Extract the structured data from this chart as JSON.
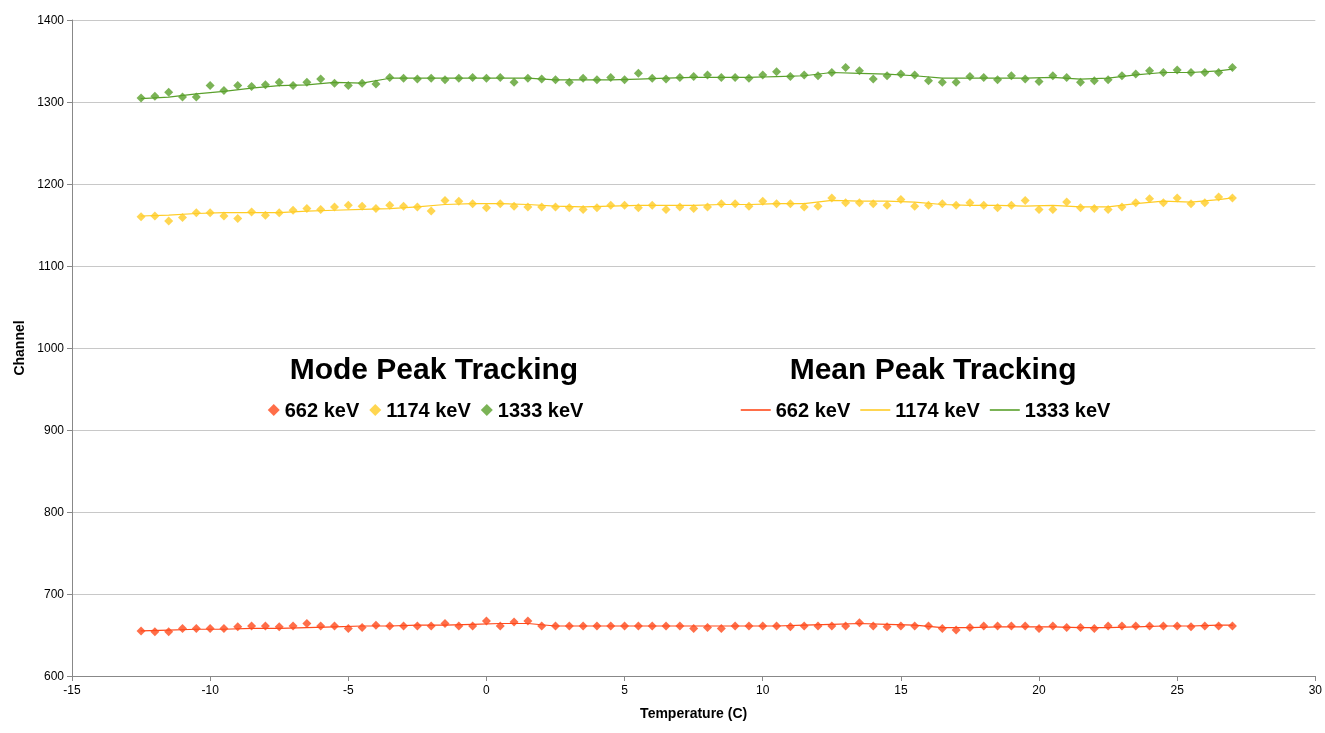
{
  "chart_data": {
    "type": "scatter",
    "xlabel": "Temperature (C)",
    "ylabel": "Channel",
    "annotations": [
      "Mode Peak Tracking",
      "Mean Peak Tracking"
    ],
    "xlim": [
      -15,
      30
    ],
    "xticks": [
      -15,
      -10,
      -5,
      0,
      5,
      10,
      15,
      20,
      25,
      30
    ],
    "ylim": [
      600,
      1400
    ],
    "yticks": [
      600,
      700,
      800,
      900,
      1000,
      1100,
      1200,
      1300,
      1400
    ],
    "grid": "y",
    "legend": "center",
    "marker": "diamond",
    "x": [
      -12.5,
      -12,
      -11.5,
      -11,
      -10.5,
      -10,
      -9.5,
      -9,
      -8.5,
      -8,
      -7.5,
      -7,
      -6.5,
      -6,
      -5.5,
      -5,
      -4.5,
      -4,
      -3.5,
      -3,
      -2.5,
      -2,
      -1.5,
      -1,
      -0.5,
      0,
      0.5,
      1,
      1.5,
      2,
      2.5,
      3,
      3.5,
      4,
      4.5,
      5,
      5.5,
      6,
      6.5,
      7,
      7.5,
      8,
      8.5,
      9,
      9.5,
      10,
      10.5,
      11,
      11.5,
      12,
      12.5,
      13,
      13.5,
      14,
      14.5,
      15,
      15.5,
      16,
      16.5,
      17,
      17.5,
      18,
      18.5,
      19,
      19.5,
      20,
      20.5,
      21,
      21.5,
      22,
      22.5,
      23,
      23.5,
      24,
      24.5,
      25,
      25.5,
      26,
      26.5,
      27
    ],
    "series": [
      {
        "name": "662 keV",
        "color": "#ff4a1c",
        "values": [
          655,
          654,
          654,
          658,
          658,
          658,
          658,
          660,
          661,
          661,
          660,
          661,
          664,
          661,
          661,
          658,
          659,
          662,
          661,
          661,
          661,
          661,
          664,
          661,
          661,
          667,
          661,
          666,
          667,
          661,
          661,
          661,
          661,
          661,
          661,
          661,
          661,
          661,
          661,
          661,
          658,
          659,
          658,
          661,
          661,
          661,
          661,
          660,
          661,
          661,
          661,
          661,
          665,
          661,
          660,
          661,
          661,
          661,
          658,
          656,
          659,
          661,
          661,
          661,
          661,
          658,
          661,
          659,
          659,
          658,
          661,
          661,
          661,
          661,
          661,
          661,
          660,
          661,
          661,
          661
        ]
      },
      {
        "name": "1174 keV",
        "color": "#ffcc26",
        "values": [
          1160,
          1161,
          1155,
          1159,
          1165,
          1165,
          1161,
          1158,
          1166,
          1162,
          1165,
          1168,
          1170,
          1169,
          1172,
          1174,
          1173,
          1170,
          1174,
          1173,
          1172,
          1167,
          1180,
          1179,
          1176,
          1171,
          1176,
          1173,
          1172,
          1172,
          1172,
          1171,
          1169,
          1171,
          1174,
          1174,
          1171,
          1174,
          1169,
          1172,
          1170,
          1172,
          1176,
          1176,
          1173,
          1179,
          1176,
          1176,
          1172,
          1173,
          1183,
          1177,
          1177,
          1176,
          1174,
          1181,
          1173,
          1174,
          1176,
          1174,
          1177,
          1174,
          1171,
          1174,
          1180,
          1169,
          1169,
          1178,
          1171,
          1170,
          1169,
          1172,
          1177,
          1182,
          1177,
          1183,
          1176,
          1177,
          1184,
          1183
        ]
      },
      {
        "name": "1333 keV",
        "color": "#5aa02c",
        "values": [
          1305,
          1307,
          1312,
          1306,
          1306,
          1320,
          1314,
          1320,
          1319,
          1321,
          1324,
          1320,
          1324,
          1328,
          1323,
          1320,
          1323,
          1322,
          1330,
          1329,
          1328,
          1329,
          1327,
          1329,
          1330,
          1329,
          1330,
          1324,
          1329,
          1328,
          1327,
          1324,
          1329,
          1327,
          1330,
          1327,
          1335,
          1329,
          1328,
          1330,
          1331,
          1333,
          1330,
          1330,
          1329,
          1333,
          1337,
          1331,
          1333,
          1332,
          1336,
          1342,
          1338,
          1328,
          1332,
          1334,
          1333,
          1326,
          1324,
          1324,
          1331,
          1330,
          1327,
          1332,
          1328,
          1325,
          1332,
          1330,
          1324,
          1326,
          1327,
          1332,
          1334,
          1338,
          1336,
          1339,
          1336,
          1336,
          1336,
          1342
        ]
      },
      {
        "name": "662 keV",
        "color": "#ff4a1c",
        "type": "line",
        "marker": "none",
        "x": [
          -12.5,
          -11.5,
          -10.5,
          -9.5,
          -8.5,
          -7.5,
          -6.5,
          -5.5,
          -4.5,
          -3.5,
          -2.5,
          -1.5,
          -0.5,
          0.5,
          1.5,
          2.5,
          3.5,
          4.5,
          5.5,
          6.5,
          7.5,
          8.5,
          9.5,
          10.5,
          11.5,
          12.5,
          13.5,
          14.5,
          15.5,
          16.5,
          17.5,
          18.5,
          19.5,
          20.5,
          21.5,
          22.5,
          23.5,
          24.5,
          25.5,
          26.5,
          27
        ],
        "values": [
          655,
          656,
          657,
          657,
          658,
          658,
          659,
          660,
          661,
          661,
          662,
          662,
          663,
          664,
          664,
          661,
          661,
          661,
          661,
          661,
          661,
          661,
          661,
          661,
          662,
          663,
          664,
          663,
          662,
          659,
          659,
          660,
          660,
          660,
          659,
          659,
          660,
          661,
          661,
          662,
          662
        ]
      },
      {
        "name": "1174 keV",
        "color": "#ffcc26",
        "type": "line",
        "marker": "none",
        "x": [
          -12.5,
          -11.5,
          -10.5,
          -9.5,
          -8.5,
          -7.5,
          -6.5,
          -5.5,
          -4.5,
          -3.5,
          -2.5,
          -1.5,
          -0.5,
          0.5,
          1.5,
          2.5,
          3.5,
          4.5,
          5.5,
          6.5,
          7.5,
          8.5,
          9.5,
          10.5,
          11.5,
          12.5,
          13.5,
          14.5,
          15.5,
          16.5,
          17.5,
          18.5,
          19.5,
          20.5,
          21.5,
          22.5,
          23.5,
          24.5,
          25.5,
          26.5,
          27
        ],
        "values": [
          1161,
          1162,
          1164,
          1165,
          1165,
          1165,
          1167,
          1168,
          1169,
          1170,
          1172,
          1175,
          1176,
          1176,
          1175,
          1173,
          1172,
          1173,
          1174,
          1174,
          1174,
          1175,
          1175,
          1176,
          1176,
          1180,
          1179,
          1179,
          1178,
          1175,
          1174,
          1174,
          1173,
          1174,
          1172,
          1172,
          1176,
          1179,
          1178,
          1181,
          1183
        ]
      },
      {
        "name": "1333 keV",
        "color": "#5aa02c",
        "type": "line",
        "marker": "none",
        "x": [
          -12.5,
          -11.5,
          -10.5,
          -9.5,
          -8.5,
          -7.5,
          -6.5,
          -5.5,
          -4.5,
          -3.5,
          -2.5,
          -1.5,
          -0.5,
          0.5,
          1.5,
          2.5,
          3.5,
          4.5,
          5.5,
          6.5,
          7.5,
          8.5,
          9.5,
          10.5,
          11.5,
          12.5,
          13.5,
          14.5,
          15.5,
          16.5,
          17.5,
          18.5,
          19.5,
          20.5,
          21.5,
          22.5,
          23.5,
          24.5,
          25.5,
          26.5,
          27
        ],
        "values": [
          1304,
          1306,
          1310,
          1313,
          1317,
          1320,
          1321,
          1324,
          1323,
          1329,
          1329,
          1329,
          1329,
          1329,
          1329,
          1327,
          1327,
          1327,
          1328,
          1329,
          1330,
          1330,
          1330,
          1331,
          1332,
          1336,
          1335,
          1334,
          1332,
          1329,
          1329,
          1329,
          1329,
          1330,
          1328,
          1329,
          1333,
          1336,
          1336,
          1338,
          1340
        ]
      }
    ]
  }
}
